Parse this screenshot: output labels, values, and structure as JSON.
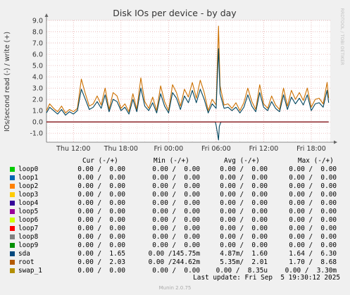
{
  "chart_data": {
    "type": "line",
    "title": "Disk IOs per device - by day",
    "ylabel": "IOs/second read (-) / write (+)",
    "watermark": "RRDTOOL / TOBI OETIKER",
    "ylim": [
      -1.8,
      9.0
    ],
    "yticks": [
      "9.0",
      "8.0",
      "7.0",
      "6.0",
      "5.0",
      "4.0",
      "3.0",
      "2.0",
      "1.0",
      "0.0",
      "-1.0"
    ],
    "ytick_values": [
      9,
      8,
      7,
      6,
      5,
      4,
      3,
      2,
      1,
      0,
      -1
    ],
    "xticks": [
      "Thu 12:00",
      "Thu 18:00",
      "Fri 00:00",
      "Fri 06:00",
      "Fri 12:00",
      "Fri 18:00"
    ],
    "xtick_hours": [
      12,
      18,
      24,
      30,
      36,
      42
    ],
    "xlim_hours": [
      8.6,
      44.4
    ],
    "grid": true,
    "series": [
      {
        "name": "root",
        "color": "#cc7000",
        "x": [
          8.6,
          9.0,
          9.5,
          10.0,
          10.5,
          11.0,
          11.5,
          12.0,
          12.5,
          13.0,
          13.5,
          14.0,
          14.5,
          15.0,
          15.5,
          16.0,
          16.5,
          17.0,
          17.5,
          18.0,
          18.5,
          19.0,
          19.5,
          20.0,
          20.5,
          21.0,
          21.5,
          22.0,
          22.5,
          23.0,
          23.5,
          24.0,
          24.5,
          25.0,
          25.5,
          26.0,
          26.5,
          27.0,
          27.5,
          28.0,
          28.5,
          29.0,
          29.5,
          30.0,
          30.3,
          30.5,
          31.0,
          31.5,
          32.0,
          32.5,
          33.0,
          33.5,
          34.0,
          34.5,
          35.0,
          35.5,
          36.0,
          36.5,
          37.0,
          37.5,
          38.0,
          38.5,
          39.0,
          39.5,
          40.0,
          40.5,
          41.0,
          41.5,
          42.0,
          42.5,
          43.0,
          43.5,
          44.0,
          44.2
        ],
        "y": [
          1.0,
          1.6,
          1.2,
          0.9,
          1.4,
          0.8,
          1.1,
          0.9,
          1.2,
          3.8,
          2.5,
          1.4,
          1.6,
          2.3,
          1.5,
          3.0,
          1.1,
          2.6,
          2.3,
          1.2,
          1.6,
          0.9,
          2.5,
          1.1,
          3.9,
          1.8,
          1.2,
          2.2,
          1.0,
          3.2,
          1.8,
          1.0,
          3.3,
          2.6,
          1.4,
          2.9,
          2.2,
          3.5,
          2.1,
          3.7,
          2.6,
          1.0,
          2.0,
          1.5,
          8.5,
          3.2,
          1.5,
          1.6,
          1.2,
          1.7,
          1.0,
          1.7,
          3.0,
          1.8,
          1.1,
          3.3,
          1.6,
          1.2,
          2.3,
          1.5,
          1.1,
          3.0,
          1.4,
          2.8,
          2.0,
          2.6,
          1.9,
          3.0,
          1.3,
          2.0,
          2.1,
          1.6,
          3.5,
          2.1
        ]
      },
      {
        "name": "sda",
        "color": "#00455e",
        "x": [
          8.6,
          9.0,
          9.5,
          10.0,
          10.5,
          11.0,
          11.5,
          12.0,
          12.5,
          13.0,
          13.5,
          14.0,
          14.5,
          15.0,
          15.5,
          16.0,
          16.5,
          17.0,
          17.5,
          18.0,
          18.5,
          19.0,
          19.5,
          20.0,
          20.5,
          21.0,
          21.5,
          22.0,
          22.5,
          23.0,
          23.5,
          24.0,
          24.5,
          25.0,
          25.5,
          26.0,
          26.5,
          27.0,
          27.5,
          28.0,
          28.5,
          29.0,
          29.5,
          30.0,
          30.3,
          30.5,
          31.0,
          31.5,
          32.0,
          32.5,
          33.0,
          33.5,
          34.0,
          34.5,
          35.0,
          35.5,
          36.0,
          36.5,
          37.0,
          37.5,
          38.0,
          38.5,
          39.0,
          39.5,
          40.0,
          40.5,
          41.0,
          41.5,
          42.0,
          42.5,
          43.0,
          43.5,
          44.0,
          44.2
        ],
        "y": [
          0.8,
          1.3,
          1.0,
          0.7,
          1.1,
          0.6,
          0.9,
          0.7,
          1.0,
          2.9,
          2.0,
          1.1,
          1.3,
          1.8,
          1.2,
          2.4,
          0.9,
          2.0,
          1.8,
          1.0,
          1.3,
          0.7,
          2.0,
          0.9,
          3.0,
          1.4,
          1.0,
          1.7,
          0.8,
          2.5,
          1.4,
          0.8,
          2.6,
          2.1,
          1.1,
          2.3,
          1.7,
          2.8,
          1.7,
          2.9,
          2.0,
          0.8,
          1.6,
          1.2,
          6.5,
          2.5,
          1.2,
          1.3,
          1.0,
          1.3,
          0.8,
          1.3,
          2.4,
          1.4,
          0.9,
          2.6,
          1.3,
          1.0,
          1.8,
          1.2,
          0.9,
          2.4,
          1.1,
          2.2,
          1.6,
          2.1,
          1.5,
          2.4,
          1.0,
          1.6,
          1.7,
          1.3,
          2.8,
          1.7
        ]
      },
      {
        "name": "sda-read",
        "color": "#00455e",
        "x": [
          8.6,
          29.9,
          30.0,
          30.3,
          30.4,
          30.6,
          44.2
        ],
        "y": [
          0,
          0,
          -0.3,
          -1.6,
          -0.4,
          0,
          0
        ]
      },
      {
        "name": "swap_1",
        "color": "#990000",
        "x": [
          8.6,
          44.2
        ],
        "y": [
          0,
          0
        ]
      }
    ]
  },
  "legend": {
    "headers": {
      "cur": "Cur (-/+)",
      "min": "Min (-/+)",
      "avg": "Avg (-/+)",
      "max": "Max (-/+)"
    },
    "rows": [
      {
        "name": "loop0",
        "color": "#00cc00",
        "cur": "0.00 /  0.00",
        "min": "0.00 /  0.00",
        "avg": "0.00 /  0.00",
        "max": "0.00 /  0.00"
      },
      {
        "name": "loop1",
        "color": "#0066b3",
        "cur": "0.00 /  0.00",
        "min": "0.00 /  0.00",
        "avg": "0.00 /  0.00",
        "max": "0.00 /  0.00"
      },
      {
        "name": "loop2",
        "color": "#ff8000",
        "cur": "0.00 /  0.00",
        "min": "0.00 /  0.00",
        "avg": "0.00 /  0.00",
        "max": "0.00 /  0.00"
      },
      {
        "name": "loop3",
        "color": "#ffcc00",
        "cur": "0.00 /  0.00",
        "min": "0.00 /  0.00",
        "avg": "0.00 /  0.00",
        "max": "0.00 /  0.00"
      },
      {
        "name": "loop4",
        "color": "#330099",
        "cur": "0.00 /  0.00",
        "min": "0.00 /  0.00",
        "avg": "0.00 /  0.00",
        "max": "0.00 /  0.00"
      },
      {
        "name": "loop5",
        "color": "#990099",
        "cur": "0.00 /  0.00",
        "min": "0.00 /  0.00",
        "avg": "0.00 /  0.00",
        "max": "0.00 /  0.00"
      },
      {
        "name": "loop6",
        "color": "#ccff00",
        "cur": "0.00 /  0.00",
        "min": "0.00 /  0.00",
        "avg": "0.00 /  0.00",
        "max": "0.00 /  0.00"
      },
      {
        "name": "loop7",
        "color": "#ff0000",
        "cur": "0.00 /  0.00",
        "min": "0.00 /  0.00",
        "avg": "0.00 /  0.00",
        "max": "0.00 /  0.00"
      },
      {
        "name": "loop8",
        "color": "#808080",
        "cur": "0.00 /  0.00",
        "min": "0.00 /  0.00",
        "avg": "0.00 /  0.00",
        "max": "0.00 /  0.00"
      },
      {
        "name": "loop9",
        "color": "#008f00",
        "cur": "0.00 /  0.00",
        "min": "0.00 /  0.00",
        "avg": "0.00 /  0.00",
        "max": "0.00 /  0.00"
      },
      {
        "name": "sda",
        "color": "#00487d",
        "cur": "0.00 /  1.65",
        "min": "0.00 /145.75m",
        "avg": "4.87m/  1.60",
        "max": "1.64 /  6.30"
      },
      {
        "name": "root",
        "color": "#b35a00",
        "cur": "0.00 /  2.03",
        "min": "0.00 /244.62m",
        "avg": "5.35m/  2.01",
        "max": "1.70 /  8.68"
      },
      {
        "name": "swap_1",
        "color": "#b38f00",
        "cur": "0.00 /  0.00",
        "min": "0.00 /  0.00",
        "avg": "0.00 /  8.35u",
        "max": "0.00 /  3.30m"
      }
    ]
  },
  "footer": {
    "last_update": "Last update: Fri Sep  5 19:30:12 2025",
    "version": "Munin 2.0.75"
  }
}
